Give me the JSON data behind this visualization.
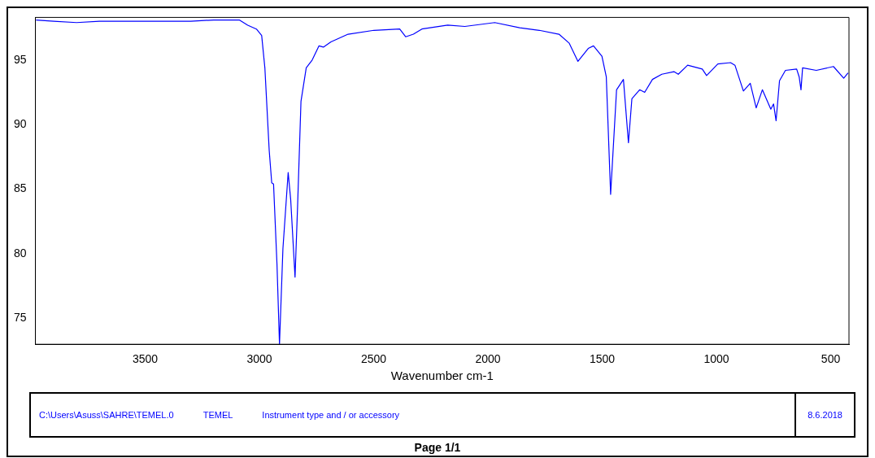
{
  "chart_data": {
    "type": "line",
    "xlabel": "Wavenumber cm-1",
    "x": [
      3977,
      3900,
      3800,
      3700,
      3600,
      3500,
      3400,
      3300,
      3200,
      3088,
      3051,
      3013,
      2990,
      2976,
      2957,
      2946,
      2938,
      2923,
      2912,
      2897,
      2874,
      2863,
      2844,
      2833,
      2818,
      2795,
      2769,
      2739,
      2720,
      2687,
      2612,
      2499,
      2386,
      2360,
      2326,
      2289,
      2176,
      2101,
      1970,
      1861,
      1775,
      1689,
      1644,
      1606,
      1561,
      1538,
      1501,
      1482,
      1463,
      1437,
      1407,
      1385,
      1370,
      1336,
      1314,
      1280,
      1239,
      1186,
      1167,
      1126,
      1062,
      1043,
      994,
      938,
      919,
      882,
      852,
      826,
      799,
      762,
      750,
      739,
      724,
      698,
      649,
      638,
      630,
      623,
      563,
      488,
      443,
      424
    ],
    "series": [
      {
        "color": "#0000ff",
        "values": [
          98.1,
          98.0,
          97.9,
          98.0,
          98.0,
          98.0,
          98.0,
          98.0,
          98.1,
          98.1,
          97.7,
          97.4,
          96.9,
          94.4,
          88.0,
          85.5,
          85.4,
          79.2,
          73.0,
          80.4,
          86.3,
          84.2,
          78.2,
          83.6,
          91.8,
          94.4,
          95.0,
          96.1,
          96.0,
          96.4,
          97.0,
          97.3,
          97.4,
          96.8,
          97.0,
          97.4,
          97.7,
          97.6,
          97.9,
          97.5,
          97.3,
          97.0,
          96.3,
          94.9,
          95.9,
          96.1,
          95.3,
          93.7,
          84.6,
          92.7,
          93.5,
          88.6,
          92.0,
          92.7,
          92.5,
          93.5,
          93.9,
          94.1,
          93.9,
          94.6,
          94.3,
          93.8,
          94.7,
          94.8,
          94.6,
          92.6,
          93.2,
          91.3,
          92.7,
          91.2,
          91.6,
          90.3,
          93.4,
          94.2,
          94.3,
          93.7,
          92.7,
          94.4,
          94.2,
          94.5,
          93.6,
          94.0
        ]
      }
    ],
    "xlim": [
      3980,
      420
    ],
    "xticks": [
      3500,
      3000,
      2500,
      2000,
      1500,
      1000,
      500
    ],
    "ylim": [
      73,
      98.3
    ],
    "yticks": [
      75,
      80,
      85,
      90,
      95
    ],
    "grid": false,
    "legend": false,
    "marker": "none",
    "line_style": "solid",
    "annotations": [
      "C:\\Users\\Asuss\\SAHRE\\TEMEL.0",
      "TEMEL",
      "Instrument type and /  or accessory",
      "8.6.2018",
      "Page 1/1"
    ]
  }
}
